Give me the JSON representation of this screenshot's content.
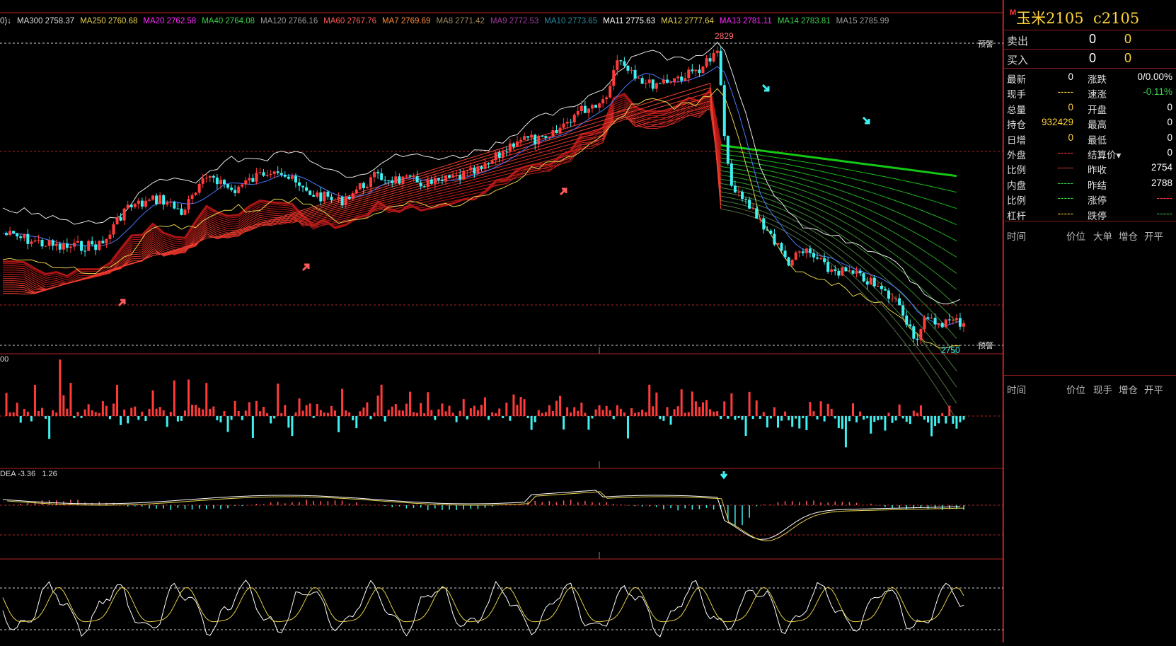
{
  "ma_legend": [
    {
      "label": "0)↓",
      "color": "#dddddd"
    },
    {
      "label": "MA300 2758.37",
      "color": "#dddddd"
    },
    {
      "label": "MA250 2760.68",
      "color": "#e8d24a"
    },
    {
      "label": "MA20 2762.58",
      "color": "#ff2bff"
    },
    {
      "label": "MA40 2764.08",
      "color": "#3bd14a"
    },
    {
      "label": "MA120 2766.16",
      "color": "#9a9a9a"
    },
    {
      "label": "MA60 2767.76",
      "color": "#ff5a5a"
    },
    {
      "label": "MA7 2769.69",
      "color": "#ff8a3a"
    },
    {
      "label": "MA8 2771.42",
      "color": "#a08a5a"
    },
    {
      "label": "MA9 2772.53",
      "color": "#a03aa0"
    },
    {
      "label": "MA10 2773.65",
      "color": "#2a8aa0"
    },
    {
      "label": "MA11 2775.63",
      "color": "#ffffff"
    },
    {
      "label": "MA12 2777.64",
      "color": "#e8d24a"
    },
    {
      "label": "MA13 2781.11",
      "color": "#ff2bff"
    },
    {
      "label": "MA14 2783.81",
      "color": "#3bd14a"
    },
    {
      "label": "MA15 2785.99",
      "color": "#9a9a9a"
    }
  ],
  "price_labels": {
    "high": "2829",
    "low": "2750",
    "alert_top": "预警",
    "alert_bottom": "预警"
  },
  "volume_label": "00",
  "macd_legend": {
    "dea": "DEA -3.36",
    "macd": "1.26"
  },
  "colors": {
    "up": "#ff3b3b",
    "down": "#3ff0f0",
    "grid": "#b22222",
    "yellow": "#ffd23a",
    "green": "#2ecc2e"
  },
  "side": {
    "title": "玉米2105",
    "code": "c2105",
    "title_sup": "M",
    "sell_label": "卖出",
    "sell_price": "0",
    "sell_vol": "0",
    "buy_label": "买入",
    "buy_price": "0",
    "buy_vol": "0",
    "quotes": [
      {
        "l1": "最新",
        "v1": "0",
        "c1": "#ffffff",
        "l2": "涨跌",
        "v2": "0/0.00%",
        "c2": "#ffffff"
      },
      {
        "l1": "现手",
        "v1": "-----",
        "c1": "#ffd23a",
        "l2": "速涨",
        "v2": "-0.11%",
        "c2": "#3bd14a"
      },
      {
        "l1": "总量",
        "v1": "0",
        "c1": "#ffd23a",
        "l2": "开盘",
        "v2": "0",
        "c2": "#ffffff"
      },
      {
        "l1": "持仓",
        "v1": "932429",
        "c1": "#ffd23a",
        "l2": "最高",
        "v2": "0",
        "c2": "#ffffff"
      },
      {
        "l1": "日增",
        "v1": "0",
        "c1": "#ffd23a",
        "l2": "最低",
        "v2": "0",
        "c2": "#ffffff"
      },
      {
        "l1": "外盘",
        "v1": "-----",
        "c1": "#ff3b3b",
        "l2": "结算价▾",
        "v2": "0",
        "c2": "#ffffff"
      },
      {
        "l1": "比例",
        "v1": "-----",
        "c1": "#ff3b3b",
        "l2": "昨收",
        "v2": "2754",
        "c2": "#ffffff"
      },
      {
        "l1": "内盘",
        "v1": "-----",
        "c1": "#3bd14a",
        "l2": "昨结",
        "v2": "2788",
        "c2": "#ffffff"
      },
      {
        "l1": "比例",
        "v1": "-----",
        "c1": "#3bd14a",
        "l2": "涨停",
        "v2": "-----",
        "c2": "#ff3b3b"
      },
      {
        "l1": "杠杆",
        "v1": "-----",
        "c1": "#ffd23a",
        "l2": "跌停",
        "v2": "-----",
        "c2": "#3bd14a"
      }
    ],
    "hdr1": [
      "时间",
      "价位",
      "大单",
      "增仓",
      "开平"
    ],
    "hdr2": [
      "时间",
      "价位",
      "现手",
      "增仓",
      "开平"
    ]
  }
}
